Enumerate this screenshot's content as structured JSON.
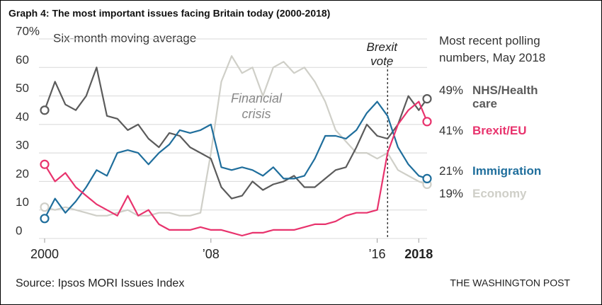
{
  "chart_data": {
    "type": "line",
    "title": "Graph 4: The most important issues facing Britain today (2000-2018)",
    "subtitle": "Six-month moving average",
    "legend_title": "Most recent polling numbers, May 2018",
    "source": "Source: Ipsos MORI Issues Index",
    "credit": "THE WASHINGTON POST",
    "annotation": "Financial crisis",
    "vline": {
      "x": 2016.5,
      "label": "Brexit vote"
    },
    "x": [
      2000,
      2000.5,
      2001,
      2001.5,
      2002,
      2002.5,
      2003,
      2003.5,
      2004,
      2004.5,
      2005,
      2005.5,
      2006,
      2006.5,
      2007,
      2007.5,
      2008,
      2008.5,
      2009,
      2009.5,
      2010,
      2010.5,
      2011,
      2011.5,
      2012,
      2012.5,
      2013,
      2013.5,
      2014,
      2014.5,
      2015,
      2015.5,
      2016,
      2016.5,
      2017,
      2017.5,
      2018,
      2018.4
    ],
    "xlim": [
      2000,
      2018.4
    ],
    "xticks": [
      2000,
      {
        "value": 2008,
        "label": "’08"
      },
      {
        "value": 2016,
        "label": "’16"
      },
      2018
    ],
    "ylim": [
      0,
      70
    ],
    "yticks": [
      0,
      10,
      20,
      30,
      40,
      50,
      60,
      {
        "value": 70,
        "label": "70%"
      }
    ],
    "grid": true,
    "series": [
      {
        "name": "NHS/Health care",
        "color": "#5b5b5b",
        "latest_label": "49%",
        "values": [
          45,
          55,
          47,
          45,
          50,
          60,
          43,
          42,
          38,
          40,
          35,
          32,
          37,
          36,
          32,
          30,
          28,
          18,
          14,
          15,
          20,
          17,
          19,
          20,
          22,
          18,
          18,
          21,
          24,
          25,
          32,
          40,
          36,
          35,
          40,
          50,
          45,
          49
        ]
      },
      {
        "name": "Brexit/EU",
        "color": "#e8336d",
        "latest_label": "41%",
        "values": [
          26,
          20,
          23,
          18,
          15,
          12,
          10,
          8,
          15,
          8,
          10,
          5,
          3,
          3,
          3,
          4,
          3,
          3,
          2,
          1,
          2,
          2,
          3,
          3,
          3,
          4,
          5,
          5,
          6,
          8,
          9,
          9,
          10,
          30,
          40,
          45,
          48,
          41
        ]
      },
      {
        "name": "Immigration",
        "color": "#1f6e9c",
        "latest_label": "21%",
        "values": [
          7,
          14,
          9,
          13,
          18,
          24,
          22,
          30,
          31,
          30,
          26,
          30,
          33,
          38,
          37,
          38,
          40,
          25,
          24,
          25,
          24,
          22,
          25,
          21,
          21,
          22,
          28,
          36,
          36,
          35,
          38,
          44,
          48,
          43,
          32,
          26,
          22,
          21
        ]
      },
      {
        "name": "Economy",
        "color": "#cfcfc8",
        "latest_label": "19%",
        "values": [
          11,
          10,
          11,
          10,
          9,
          8,
          8,
          9,
          10,
          8,
          8,
          9,
          9,
          8,
          8,
          9,
          30,
          55,
          64,
          58,
          60,
          50,
          60,
          62,
          58,
          60,
          55,
          48,
          38,
          34,
          30,
          30,
          28,
          30,
          24,
          22,
          20,
          19
        ]
      }
    ]
  }
}
